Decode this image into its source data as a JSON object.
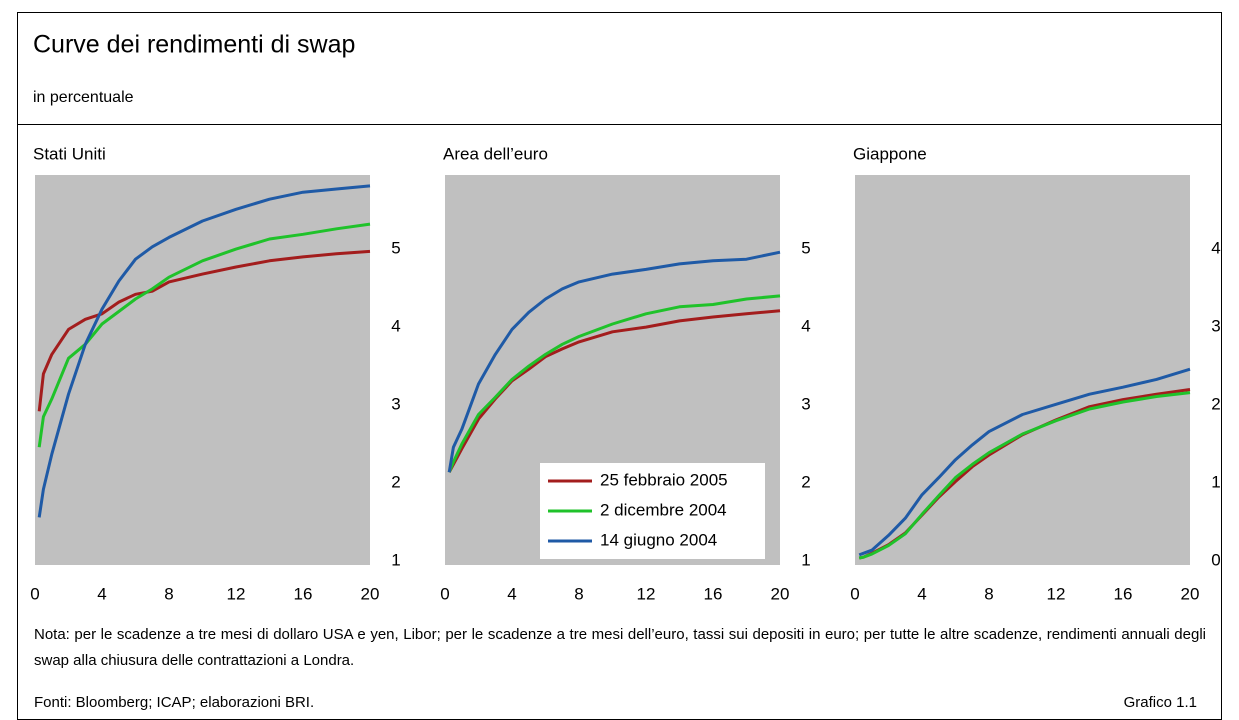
{
  "title": "Curve dei rendimenti di swap",
  "subtitle": "in percentuale",
  "note": "Nota: per le scadenze a tre mesi di dollaro USA e yen, Libor; per le scadenze a tre mesi dell’euro, tassi sui depositi in euro; per tutte le altre scadenze, rendimenti annuali degli swap alla chiusura delle contrattazioni a Londra.",
  "sources": "Fonti: Bloomberg; ICAP; elaborazioni BRI.",
  "figure_label": "Grafico 1.1",
  "chart_data": [
    {
      "type": "line",
      "title": "Stati Uniti",
      "x": [
        0.25,
        0.5,
        1,
        2,
        3,
        4,
        5,
        6,
        7,
        8,
        10,
        12,
        14,
        16,
        18,
        20
      ],
      "xlim": [
        0,
        20
      ],
      "xticks": [
        0,
        4,
        8,
        12,
        16,
        20
      ],
      "ylim": [
        0.95,
        5.95
      ],
      "yticks": [
        1,
        2,
        3,
        4,
        5
      ],
      "series": [
        {
          "color": "#a31d1d",
          "values": [
            2.92,
            3.4,
            3.65,
            3.97,
            4.1,
            4.17,
            4.32,
            4.42,
            4.46,
            4.58,
            4.68,
            4.77,
            4.85,
            4.9,
            4.94,
            4.97
          ]
        },
        {
          "color": "#1fc22a",
          "values": [
            2.46,
            2.85,
            3.08,
            3.6,
            3.78,
            4.04,
            4.2,
            4.36,
            4.49,
            4.64,
            4.85,
            5.0,
            5.13,
            5.19,
            5.26,
            5.32
          ]
        },
        {
          "color": "#1f5aa6",
          "values": [
            1.56,
            1.92,
            2.37,
            3.14,
            3.78,
            4.23,
            4.59,
            4.87,
            5.03,
            5.15,
            5.36,
            5.51,
            5.64,
            5.73,
            5.77,
            5.81
          ]
        }
      ]
    },
    {
      "type": "line",
      "title": "Area dell’euro",
      "x": [
        0.25,
        0.5,
        1,
        2,
        3,
        4,
        5,
        6,
        7,
        8,
        10,
        12,
        14,
        16,
        18,
        20
      ],
      "xlim": [
        0,
        20
      ],
      "xticks": [
        0,
        4,
        8,
        12,
        16,
        20
      ],
      "ylim": [
        0.95,
        5.95
      ],
      "yticks": [
        1,
        2,
        3,
        4,
        5
      ],
      "legend": "bottom-right",
      "series": [
        {
          "name": "25 febbraio 2005",
          "color": "#a31d1d",
          "values": [
            2.14,
            2.24,
            2.44,
            2.82,
            3.08,
            3.31,
            3.46,
            3.62,
            3.72,
            3.81,
            3.94,
            4.0,
            4.08,
            4.13,
            4.17,
            4.21
          ]
        },
        {
          "name": "2 dicembre 2004",
          "color": "#1fc22a",
          "values": [
            2.14,
            2.27,
            2.5,
            2.88,
            3.1,
            3.33,
            3.5,
            3.65,
            3.78,
            3.88,
            4.04,
            4.17,
            4.26,
            4.29,
            4.36,
            4.4
          ]
        },
        {
          "name": "14 giugno 2004",
          "color": "#1f5aa6",
          "values": [
            2.14,
            2.46,
            2.69,
            3.27,
            3.65,
            3.97,
            4.19,
            4.36,
            4.49,
            4.58,
            4.68,
            4.74,
            4.81,
            4.85,
            4.87,
            4.96
          ]
        }
      ]
    },
    {
      "type": "line",
      "title": "Giappone",
      "x": [
        0.25,
        0.5,
        1,
        2,
        3,
        4,
        5,
        6,
        7,
        8,
        10,
        12,
        14,
        16,
        18,
        20
      ],
      "xlim": [
        0,
        20
      ],
      "xticks": [
        0,
        4,
        8,
        12,
        16,
        20
      ],
      "ylim": [
        -0.05,
        4.95
      ],
      "yticks": [
        0,
        1,
        2,
        3,
        4
      ],
      "series": [
        {
          "color": "#a31d1d",
          "values": [
            0.04,
            0.05,
            0.1,
            0.21,
            0.36,
            0.59,
            0.82,
            1.02,
            1.21,
            1.36,
            1.62,
            1.81,
            1.98,
            2.07,
            2.14,
            2.2
          ]
        },
        {
          "color": "#1fc22a",
          "values": [
            0.04,
            0.05,
            0.09,
            0.2,
            0.35,
            0.6,
            0.84,
            1.07,
            1.24,
            1.39,
            1.63,
            1.8,
            1.95,
            2.04,
            2.11,
            2.16
          ]
        },
        {
          "color": "#1f5aa6",
          "values": [
            0.08,
            0.1,
            0.14,
            0.33,
            0.55,
            0.85,
            1.07,
            1.3,
            1.49,
            1.66,
            1.88,
            2.01,
            2.14,
            2.23,
            2.33,
            2.46
          ]
        }
      ]
    }
  ]
}
